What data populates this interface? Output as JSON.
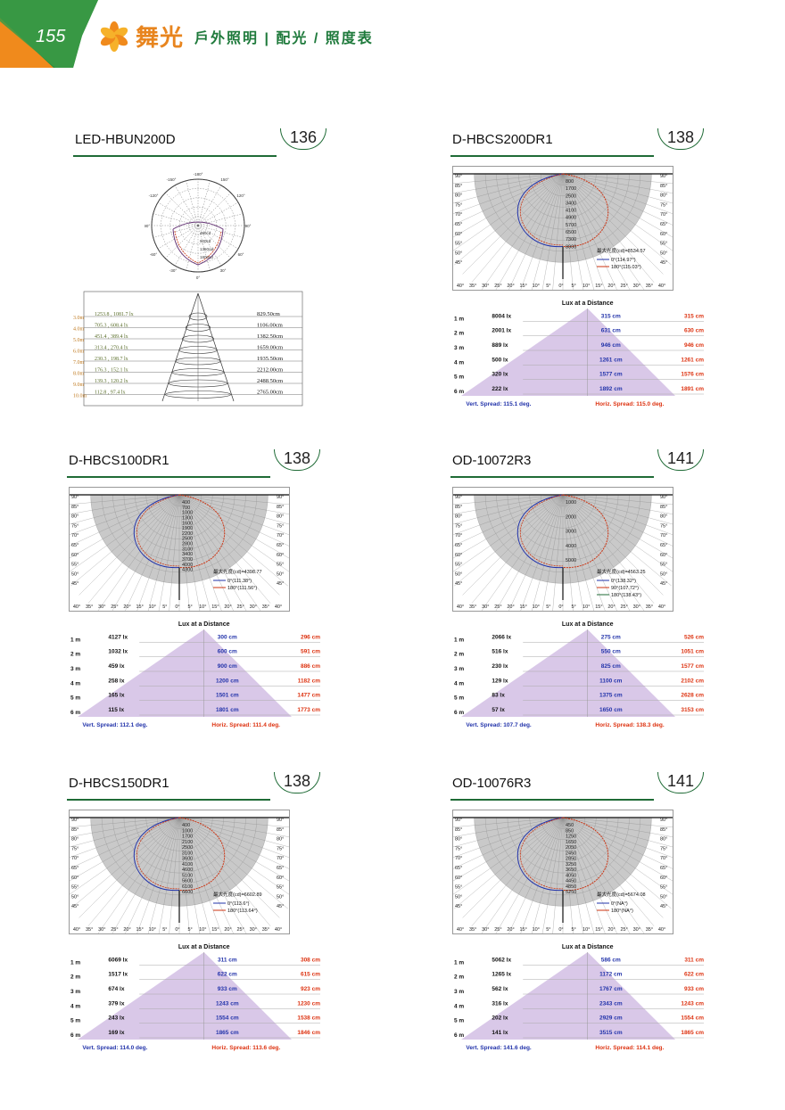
{
  "header": {
    "page_number": "155",
    "brand_name": "舞光",
    "subtitle": "戶外照明 | 配光 / 照度表",
    "colors": {
      "green": "#1f7a3c",
      "orange": "#e8851f"
    }
  },
  "products": [
    {
      "name": "LED-HBUN200D",
      "badge": "136",
      "type": "cone",
      "polar_labels": [
        "-180°",
        "-150°",
        "150°",
        "-120°",
        "120°",
        "-90°",
        "90°",
        "-60°",
        "60°",
        "-30°",
        "30°",
        "0°"
      ],
      "polar_rings": [
        "450cd",
        "900cd",
        "1350cd",
        "1800cd"
      ],
      "rows": [
        {
          "height": "3.0m",
          "lux": "1253.8 , 1081.7 lx",
          "diameter": "829.50cm"
        },
        {
          "height": "4.0m",
          "lux": "705.3 , 608.4 lx",
          "diameter": "1106.00cm"
        },
        {
          "height": "5.0m",
          "lux": "451.4 , 389.4 lx",
          "diameter": "1382.50cm"
        },
        {
          "height": "6.0m",
          "lux": "313.4 , 270.4 lx",
          "diameter": "1659.00cm"
        },
        {
          "height": "7.0m",
          "lux": "230.3 , 198.7 lx",
          "diameter": "1935.50cm"
        },
        {
          "height": "8.0m",
          "lux": "176.3 , 152.1 lx",
          "diameter": "2212.00cm"
        },
        {
          "height": "9.0m",
          "lux": "139.3 , 120.2 lx",
          "diameter": "2488.50cm"
        },
        {
          "height": "10.0m",
          "lux": "112.8 , 97.4 lx",
          "diameter": "2765.00cm"
        }
      ]
    },
    {
      "name": "D-HBCS200DR1",
      "badge": "138",
      "type": "lux",
      "polar": {
        "max": "最大光度(cd)=8534.57",
        "l1": "0°(114.97°)",
        "l2": "180°(115.03°)",
        "scale": [
          "800",
          "1700",
          "2500",
          "3400",
          "4100",
          "4900",
          "5700",
          "6500",
          "7300",
          "8000"
        ]
      },
      "lux_title": "Lux at a Distance",
      "rows": [
        {
          "d": "1 m",
          "lux": "8004 lx",
          "v": "315 cm",
          "h": "315 cm"
        },
        {
          "d": "2 m",
          "lux": "2001 lx",
          "v": "631 cm",
          "h": "630 cm"
        },
        {
          "d": "3 m",
          "lux": "889 lx",
          "v": "946 cm",
          "h": "946 cm"
        },
        {
          "d": "4 m",
          "lux": "500 lx",
          "v": "1261 cm",
          "h": "1261 cm"
        },
        {
          "d": "5 m",
          "lux": "320 lx",
          "v": "1577 cm",
          "h": "1576 cm"
        },
        {
          "d": "6 m",
          "lux": "222 lx",
          "v": "1892 cm",
          "h": "1891 cm"
        }
      ],
      "vert": "Vert. Spread: 115.1 deg.",
      "horiz": "Horiz. Spread: 115.0 deg."
    },
    {
      "name": "D-HBCS100DR1",
      "badge": "138",
      "type": "lux",
      "polar": {
        "max": "最大光度(cd)=4398.77",
        "l1": "0°(111.38°)",
        "l2": "180°(111.56°)",
        "scale": [
          "400",
          "700",
          "1000",
          "1300",
          "1600",
          "1900",
          "2200",
          "2500",
          "2800",
          "3100",
          "3400",
          "3700",
          "4000",
          "4300"
        ]
      },
      "lux_title": "Lux at a Distance",
      "rows": [
        {
          "d": "1 m",
          "lux": "4127 lx",
          "v": "300 cm",
          "h": "296 cm"
        },
        {
          "d": "2 m",
          "lux": "1032 lx",
          "v": "600 cm",
          "h": "591 cm"
        },
        {
          "d": "3 m",
          "lux": "459 lx",
          "v": "900 cm",
          "h": "886 cm"
        },
        {
          "d": "4 m",
          "lux": "258 lx",
          "v": "1200 cm",
          "h": "1182 cm"
        },
        {
          "d": "5 m",
          "lux": "165 lx",
          "v": "1501 cm",
          "h": "1477 cm"
        },
        {
          "d": "6 m",
          "lux": "115 lx",
          "v": "1801 cm",
          "h": "1773 cm"
        }
      ],
      "vert": "Vert. Spread: 112.1 deg.",
      "horiz": "Horiz. Spread: 111.4 deg."
    },
    {
      "name": "OD-10072R3",
      "badge": "141",
      "type": "lux",
      "polar": {
        "max": "最大光度(cd)=4563.25",
        "l1": "0°(138.32°)",
        "l2": "90°(107.72°)",
        "l3": "180°(138.43°)",
        "scale": [
          "1000",
          "2000",
          "3000",
          "4000",
          "5000"
        ]
      },
      "lux_title": "Lux at a Distance",
      "rows": [
        {
          "d": "1 m",
          "lux": "2066 lx",
          "v": "275 cm",
          "h": "526 cm"
        },
        {
          "d": "2 m",
          "lux": "516 lx",
          "v": "550 cm",
          "h": "1051 cm"
        },
        {
          "d": "3 m",
          "lux": "230 lx",
          "v": "825 cm",
          "h": "1577 cm"
        },
        {
          "d": "4 m",
          "lux": "129 lx",
          "v": "1100 cm",
          "h": "2102 cm"
        },
        {
          "d": "5 m",
          "lux": "83 lx",
          "v": "1375 cm",
          "h": "2628 cm"
        },
        {
          "d": "6 m",
          "lux": "57 lx",
          "v": "1650 cm",
          "h": "3153 cm"
        }
      ],
      "vert": "Vert. Spread: 107.7 deg.",
      "horiz": "Horiz. Spread: 138.3 deg."
    },
    {
      "name": "D-HBCS150DR1",
      "badge": "138",
      "type": "lux",
      "polar": {
        "max": "最大光度(cd)=6602.89",
        "l1": "0°(113.6°)",
        "l2": "180°(113.64°)",
        "scale": [
          "400",
          "1000",
          "1700",
          "2100",
          "2500",
          "3100",
          "3600",
          "4100",
          "4600",
          "5100",
          "5600",
          "6100",
          "6600"
        ]
      },
      "lux_title": "Lux at a Distance",
      "rows": [
        {
          "d": "1 m",
          "lux": "6069 lx",
          "v": "311 cm",
          "h": "308 cm"
        },
        {
          "d": "2 m",
          "lux": "1517 lx",
          "v": "622 cm",
          "h": "615 cm"
        },
        {
          "d": "3 m",
          "lux": "674 lx",
          "v": "933 cm",
          "h": "923 cm"
        },
        {
          "d": "4 m",
          "lux": "379 lx",
          "v": "1243 cm",
          "h": "1230 cm"
        },
        {
          "d": "5 m",
          "lux": "243 lx",
          "v": "1554 cm",
          "h": "1538 cm"
        },
        {
          "d": "6 m",
          "lux": "169 lx",
          "v": "1865 cm",
          "h": "1846 cm"
        }
      ],
      "vert": "Vert. Spread: 114.0 deg.",
      "horiz": "Horiz. Spread: 113.6 deg."
    },
    {
      "name": "OD-10076R3",
      "badge": "141",
      "type": "lux",
      "polar": {
        "max": "最大光度(cd)=5674.08",
        "l1": "0°(NA°)",
        "l2": "180°(NA°)",
        "scale": [
          "450",
          "850",
          "1250",
          "1650",
          "2050",
          "2450",
          "2850",
          "3250",
          "3650",
          "4050",
          "4450",
          "4850",
          "5250"
        ]
      },
      "lux_title": "Lux at a Distance",
      "rows": [
        {
          "d": "1 m",
          "lux": "5062 lx",
          "v": "586 cm",
          "h": "311 cm"
        },
        {
          "d": "2 m",
          "lux": "1265 lx",
          "v": "1172 cm",
          "h": "622 cm"
        },
        {
          "d": "3 m",
          "lux": "562 lx",
          "v": "1767 cm",
          "h": "933 cm"
        },
        {
          "d": "4 m",
          "lux": "316 lx",
          "v": "2343 cm",
          "h": "1243 cm"
        },
        {
          "d": "5 m",
          "lux": "202 lx",
          "v": "2929 cm",
          "h": "1554 cm"
        },
        {
          "d": "6 m",
          "lux": "141 lx",
          "v": "3515 cm",
          "h": "1865 cm"
        }
      ],
      "vert": "Vert. Spread: 141.6 deg.",
      "horiz": "Horiz. Spread: 114.1 deg."
    }
  ],
  "polar_axis_labels": {
    "side": [
      "90°",
      "85°",
      "80°",
      "75°",
      "70°",
      "65°",
      "60°",
      "55°",
      "50°",
      "45°"
    ],
    "bottom": [
      "40°",
      "35°",
      "30°",
      "25°",
      "20°",
      "15°",
      "10°",
      "5°",
      "0°",
      "5°",
      "10°",
      "15°",
      "20°",
      "25°",
      "30°",
      "35°",
      "40°"
    ]
  }
}
